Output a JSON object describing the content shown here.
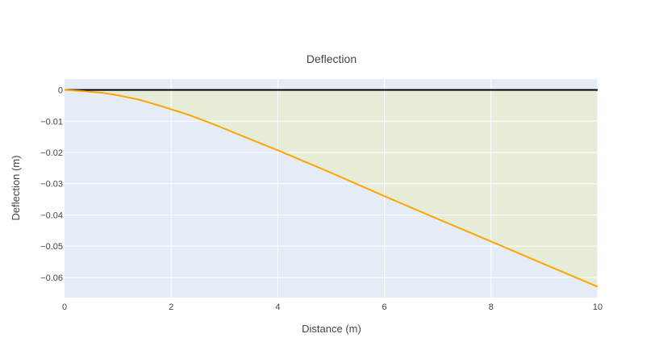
{
  "chart_data": {
    "type": "line",
    "title": "Deflection",
    "xlabel": "Distance (m)",
    "ylabel": "Deflection (m)",
    "xlim": [
      0,
      10
    ],
    "ylim": [
      -0.0665,
      0.0035
    ],
    "xticks": [
      0,
      2,
      4,
      6,
      8,
      10
    ],
    "xtick_labels": [
      "0",
      "2",
      "4",
      "6",
      "8",
      "10"
    ],
    "yticks": [
      0,
      -0.01,
      -0.02,
      -0.03,
      -0.04,
      -0.05,
      -0.06
    ],
    "ytick_labels": [
      "0",
      "−0.01",
      "−0.02",
      "−0.03",
      "−0.04",
      "−0.05",
      "−0.06"
    ],
    "grid": true,
    "legend": "none",
    "colors": {
      "plot_background": "#e5ecf6",
      "fill": "#e5ecd8",
      "deflection_line": "#ffa500",
      "baseline": "#000000",
      "grid": "#ffffff"
    },
    "series": [
      {
        "x": [
          0,
          0.3,
          0.7,
          1.0,
          1.4,
          1.8,
          2.3,
          2.8,
          3.3,
          4.0,
          5.0,
          6.0,
          7.0,
          8.0,
          9.0,
          10.0
        ],
        "values": [
          0,
          -0.0003,
          -0.0009,
          -0.0017,
          -0.0031,
          -0.0051,
          -0.0078,
          -0.011,
          -0.0145,
          -0.0193,
          -0.0265,
          -0.034,
          -0.0413,
          -0.0485,
          -0.0558,
          -0.063
        ]
      },
      {
        "x": [
          0,
          10
        ],
        "values": [
          0,
          0
        ]
      }
    ]
  }
}
